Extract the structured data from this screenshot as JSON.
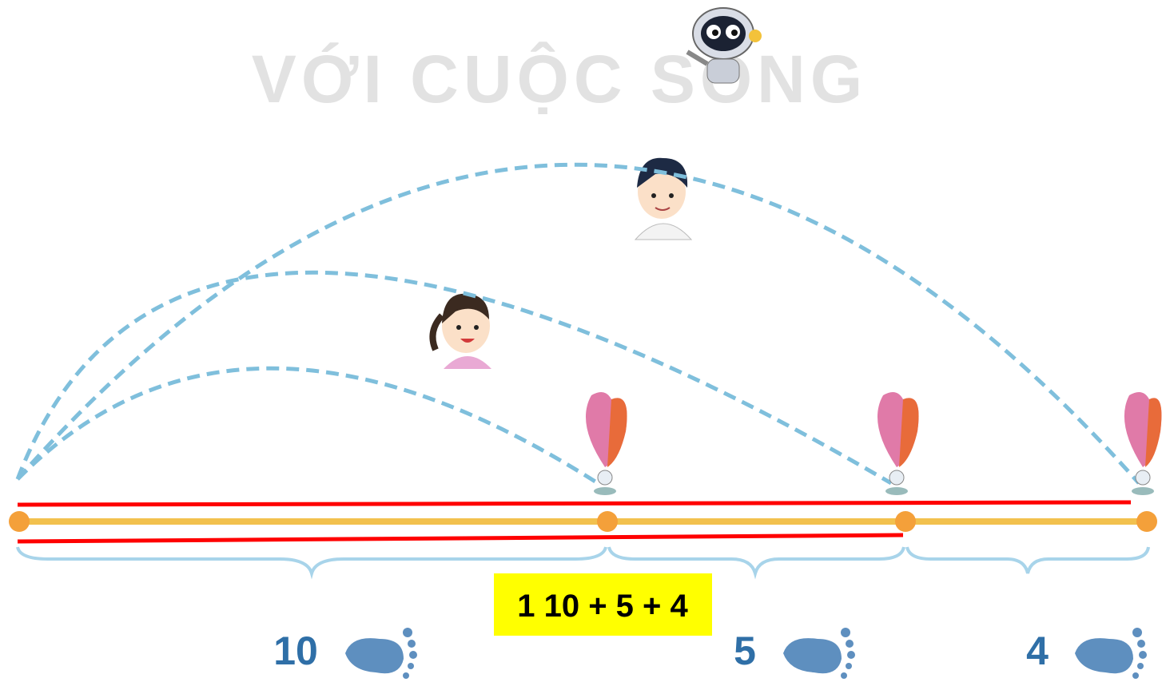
{
  "watermark": "VỚI CUỘC SỐNG",
  "highlight": "1  10 + 5 + 4",
  "segments": [
    {
      "label": "10"
    },
    {
      "label": "5"
    },
    {
      "label": "4"
    }
  ]
}
